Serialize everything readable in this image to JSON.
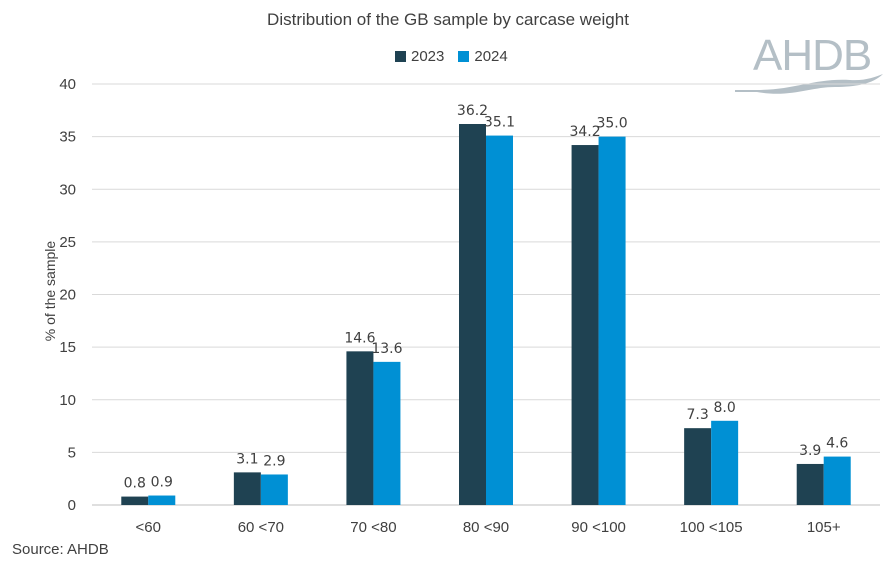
{
  "chart_data": {
    "type": "bar",
    "title": "Distribution of the GB sample by carcase weight",
    "xlabel": "",
    "ylabel": "% of the sample",
    "ylim": [
      0,
      40
    ],
    "yticks": [
      0,
      5,
      10,
      15,
      20,
      25,
      30,
      35,
      40
    ],
    "grid": true,
    "legend": "top-center",
    "categories": [
      "<60",
      "60 <70",
      "70 <80",
      "80 <90",
      "90 <100",
      "100 <105",
      "105+"
    ],
    "series": [
      {
        "name": "2023",
        "color": "#1F4252",
        "values": [
          0.8,
          3.1,
          14.6,
          36.2,
          34.2,
          7.3,
          3.9
        ]
      },
      {
        "name": "2024",
        "color": "#0090D4",
        "values": [
          0.9,
          2.9,
          13.6,
          35.1,
          35.0,
          8.0,
          4.6
        ]
      }
    ]
  },
  "source": "Source: AHDB",
  "logo_text": "AHDB"
}
